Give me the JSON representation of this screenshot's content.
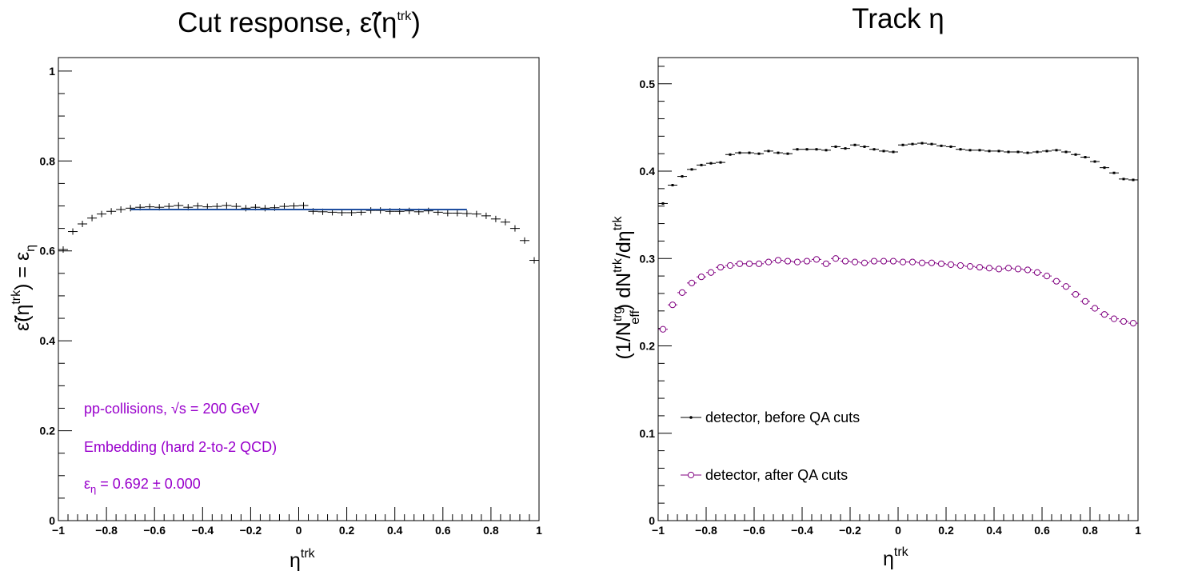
{
  "colors": {
    "fit": "#1f4fa0",
    "after": "#800080",
    "before": "#000000",
    "annotation": "#9900cc"
  },
  "left": {
    "title_main": "Cut response, ",
    "title_sym": "ε̃(η",
    "title_sup": "trk",
    "title_close": ")",
    "ylabel_main": "ε̃(η",
    "ylabel_sup": "trk",
    "ylabel_rest": ") = ε",
    "ylabel_sub": "η",
    "xlabel_main": "η",
    "xlabel_sup": "trk",
    "annotations": {
      "line1": "pp-collisions, √s = 200 GeV",
      "line2": "Embedding (hard 2-to-2 QCD)",
      "line3_sym": "ε",
      "line3_sub": "η",
      "line3_rest": " = 0.692 ± 0.000"
    }
  },
  "right": {
    "title": "Track η",
    "ylabel_a": "(1/N",
    "ylabel_sup1": "trg",
    "ylabel_sub1": "eff",
    "ylabel_b": ") dN",
    "ylabel_sup2": "trk",
    "ylabel_c": "/dη",
    "ylabel_sup3": "trk",
    "xlabel_main": "η",
    "xlabel_sup": "trk",
    "legend": [
      {
        "label": "detector, before QA cuts",
        "marker": "dot"
      },
      {
        "label": "detector, after QA cuts",
        "marker": "open-circle"
      }
    ]
  },
  "chart_data": [
    {
      "type": "scatter",
      "title": "Cut response, ε̃(η^trk)",
      "xlabel": "η^trk",
      "ylabel": "ε̃(η^trk) = ε_η",
      "xlim": [
        -1,
        1
      ],
      "ylim": [
        0,
        1.03
      ],
      "xticks": [
        "−1",
        "−0.8",
        "−0.6",
        "−0.4",
        "−0.2",
        "0",
        "0.2",
        "0.4",
        "0.6",
        "0.8",
        "1"
      ],
      "yticks": [
        "0",
        "0.2",
        "0.4",
        "0.6",
        "0.8",
        "1"
      ],
      "bin_width": 0.04,
      "x": [
        -0.98,
        -0.94,
        -0.9,
        -0.86,
        -0.82,
        -0.78,
        -0.74,
        -0.7,
        -0.66,
        -0.62,
        -0.58,
        -0.54,
        -0.5,
        -0.46,
        -0.42,
        -0.38,
        -0.34,
        -0.3,
        -0.26,
        -0.22,
        -0.18,
        -0.14,
        -0.1,
        -0.06,
        -0.02,
        0.02,
        0.06,
        0.1,
        0.14,
        0.18,
        0.22,
        0.26,
        0.3,
        0.34,
        0.38,
        0.42,
        0.46,
        0.5,
        0.54,
        0.58,
        0.62,
        0.66,
        0.7,
        0.74,
        0.78,
        0.82,
        0.86,
        0.9,
        0.94,
        0.98
      ],
      "series": [
        {
          "values": [
            0.603,
            0.643,
            0.66,
            0.673,
            0.682,
            0.688,
            0.692,
            0.695,
            0.697,
            0.698,
            0.697,
            0.699,
            0.701,
            0.697,
            0.7,
            0.698,
            0.699,
            0.701,
            0.699,
            0.695,
            0.697,
            0.695,
            0.696,
            0.699,
            0.7,
            0.701,
            0.688,
            0.687,
            0.686,
            0.685,
            0.685,
            0.686,
            0.69,
            0.69,
            0.688,
            0.688,
            0.689,
            0.687,
            0.689,
            0.686,
            0.684,
            0.684,
            0.683,
            0.682,
            0.678,
            0.671,
            0.664,
            0.65,
            0.623,
            0.579
          ]
        }
      ],
      "fit": {
        "value": 0.692,
        "x_range": [
          -0.7,
          0.7
        ]
      }
    },
    {
      "type": "scatter",
      "title": "Track η",
      "xlabel": "η^trk",
      "ylabel": "(1/N^trg_eff) dN^trk/dη^trk",
      "xlim": [
        -1,
        1
      ],
      "ylim": [
        0,
        0.53
      ],
      "xticks": [
        "−1",
        "−0.8",
        "−0.6",
        "−0.4",
        "−0.2",
        "0",
        "0.2",
        "0.4",
        "0.6",
        "0.8",
        "1"
      ],
      "yticks": [
        "0",
        "0.1",
        "0.2",
        "0.3",
        "0.4",
        "0.5"
      ],
      "bin_width": 0.04,
      "x": [
        -0.98,
        -0.94,
        -0.9,
        -0.86,
        -0.82,
        -0.78,
        -0.74,
        -0.7,
        -0.66,
        -0.62,
        -0.58,
        -0.54,
        -0.5,
        -0.46,
        -0.42,
        -0.38,
        -0.34,
        -0.3,
        -0.26,
        -0.22,
        -0.18,
        -0.14,
        -0.1,
        -0.06,
        -0.02,
        0.02,
        0.06,
        0.1,
        0.14,
        0.18,
        0.22,
        0.26,
        0.3,
        0.34,
        0.38,
        0.42,
        0.46,
        0.5,
        0.54,
        0.58,
        0.62,
        0.66,
        0.7,
        0.74,
        0.78,
        0.82,
        0.86,
        0.9,
        0.94,
        0.98
      ],
      "series": [
        {
          "name": "detector, before QA cuts",
          "marker": "dot",
          "values": [
            0.363,
            0.384,
            0.394,
            0.402,
            0.407,
            0.409,
            0.41,
            0.419,
            0.421,
            0.421,
            0.42,
            0.423,
            0.421,
            0.42,
            0.425,
            0.425,
            0.425,
            0.424,
            0.428,
            0.426,
            0.43,
            0.428,
            0.425,
            0.423,
            0.422,
            0.43,
            0.431,
            0.432,
            0.431,
            0.429,
            0.428,
            0.425,
            0.424,
            0.424,
            0.423,
            0.423,
            0.422,
            0.422,
            0.421,
            0.422,
            0.423,
            0.424,
            0.422,
            0.419,
            0.416,
            0.411,
            0.404,
            0.398,
            0.391,
            0.39
          ]
        },
        {
          "name": "detector, after QA cuts",
          "marker": "open-circle",
          "values": [
            0.219,
            0.247,
            0.261,
            0.272,
            0.279,
            0.284,
            0.29,
            0.292,
            0.294,
            0.294,
            0.294,
            0.296,
            0.298,
            0.297,
            0.296,
            0.297,
            0.299,
            0.294,
            0.3,
            0.297,
            0.296,
            0.295,
            0.297,
            0.297,
            0.297,
            0.296,
            0.296,
            0.295,
            0.295,
            0.294,
            0.293,
            0.292,
            0.291,
            0.29,
            0.289,
            0.288,
            0.289,
            0.288,
            0.287,
            0.284,
            0.28,
            0.274,
            0.268,
            0.259,
            0.251,
            0.243,
            0.236,
            0.231,
            0.228,
            0.226
          ]
        }
      ]
    }
  ]
}
